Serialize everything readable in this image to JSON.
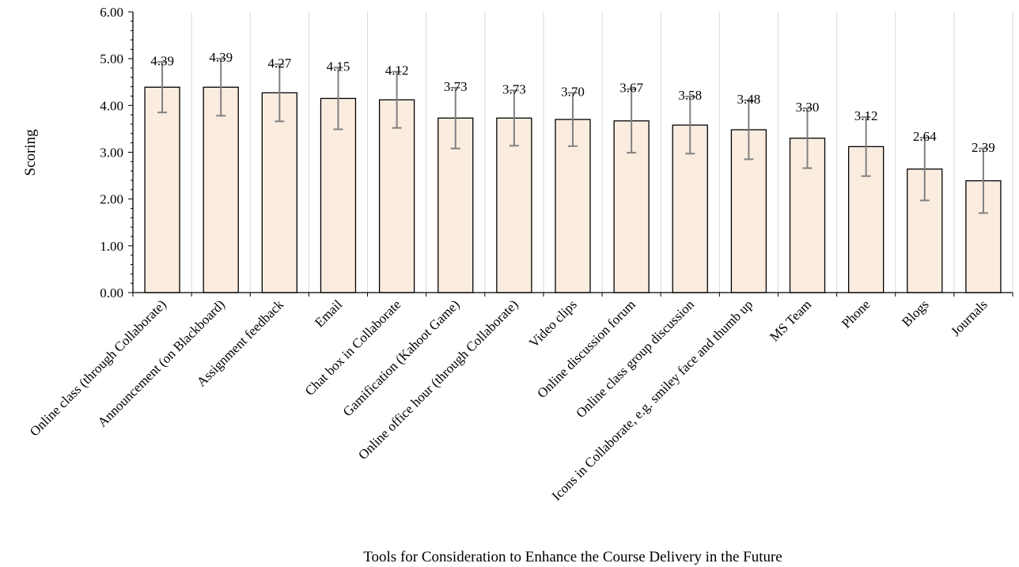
{
  "chart_data": {
    "type": "bar",
    "title": "",
    "xlabel": "Tools for Consideration to Enhance the Course Delivery in the Future",
    "ylabel": "Scoring",
    "ylim": [
      0,
      6
    ],
    "yticks": [
      "0.00",
      "1.00",
      "2.00",
      "3.00",
      "4.00",
      "5.00",
      "6.00"
    ],
    "grid": "vertical",
    "colors": {
      "bar_fill": "#fbece0",
      "bar_stroke": "#000000",
      "error_bar": "#808080",
      "grid": "#d9d9d9"
    },
    "categories": [
      "Online class (through Collaborate)",
      "Announcement (on Blackboard)",
      "Assignment feedback",
      "Email",
      "Chat box in Collaborate",
      "Gamification (Kahoot Game)",
      "Online office hour (through Collaborate)",
      "Video clips",
      "Online discussion forum",
      "Online class group discussion",
      "Icons in Collaborate, e.g. smiley face and thumb up",
      "MS Team",
      "Phone",
      "Blogs",
      "Journals"
    ],
    "values": [
      4.39,
      4.39,
      4.27,
      4.15,
      4.12,
      3.73,
      3.73,
      3.7,
      3.67,
      3.58,
      3.48,
      3.3,
      3.12,
      2.64,
      2.39
    ],
    "value_labels": [
      "4.39",
      "4.39",
      "4.27",
      "4.15",
      "4.12",
      "3.73",
      "3.73",
      "3.70",
      "3.67",
      "3.58",
      "3.48",
      "3.30",
      "3.12",
      "2.64",
      "2.39"
    ],
    "error": [
      0.54,
      0.61,
      0.61,
      0.66,
      0.6,
      0.65,
      0.59,
      0.57,
      0.68,
      0.61,
      0.63,
      0.64,
      0.63,
      0.67,
      0.69
    ]
  }
}
